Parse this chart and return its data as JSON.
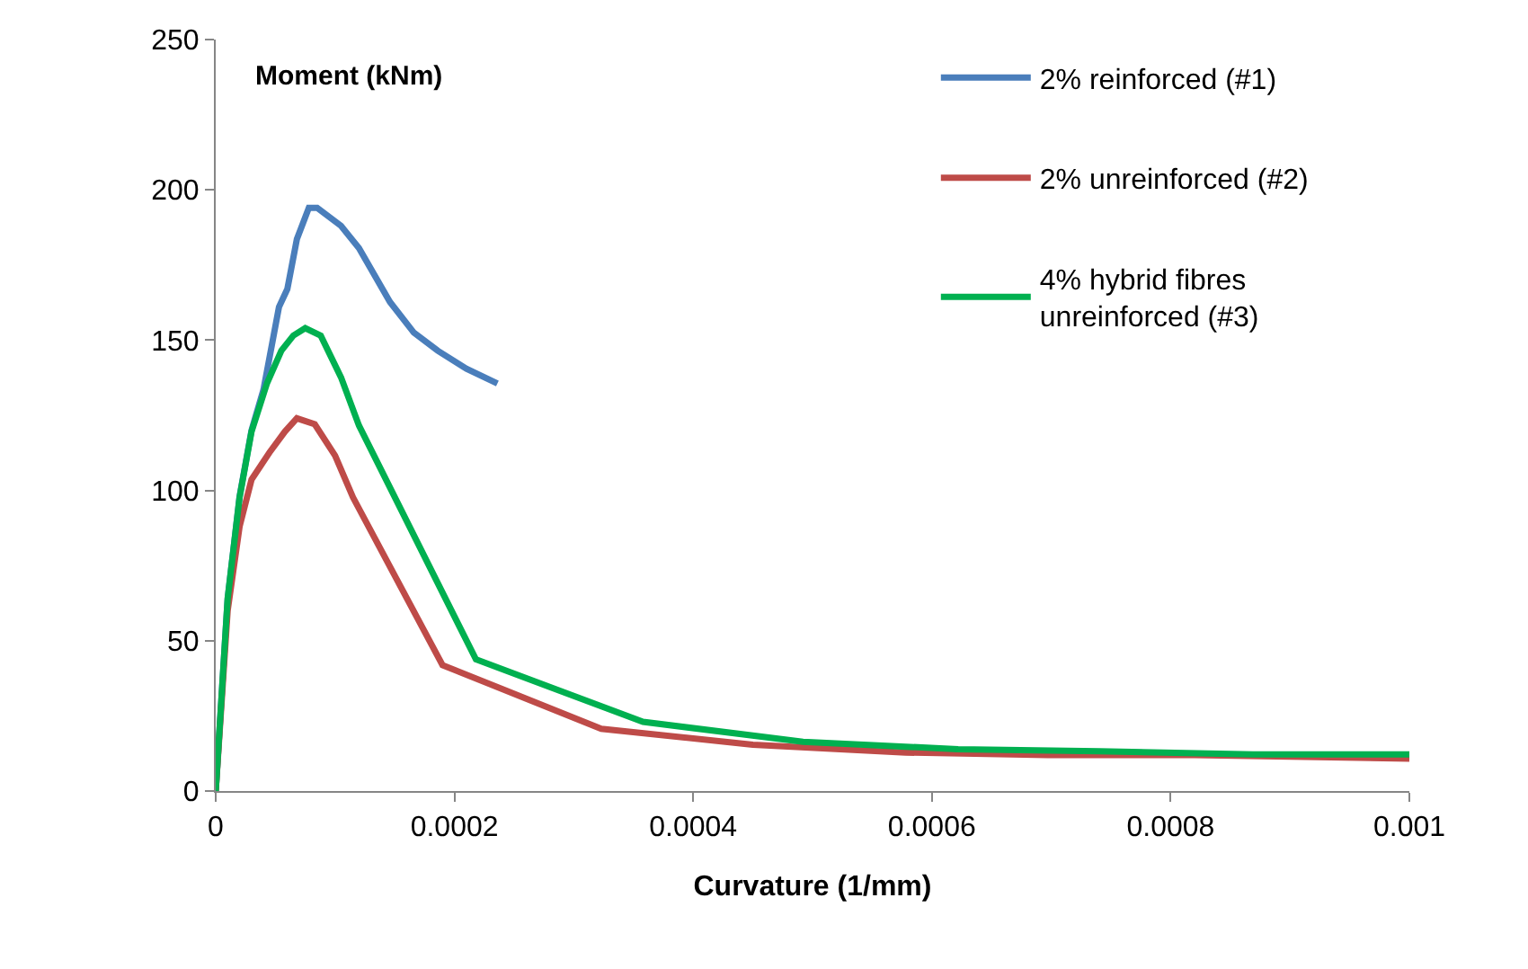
{
  "chart_data": {
    "type": "line",
    "xlabel": "Curvature (1/mm)",
    "ylabel": "Moment (kNm)",
    "xlim": [
      0,
      0.001
    ],
    "xticks": [
      0,
      0.0002,
      0.0004,
      0.0006,
      0.0008,
      0.001
    ],
    "ylim": [
      0,
      250
    ],
    "yticks": [
      0,
      50,
      100,
      150,
      200,
      250
    ],
    "legend": "top right",
    "marker": "none",
    "line_style": "solid",
    "series": [
      {
        "name": "2% reinforced (#1)",
        "color": "#4a7ebb",
        "x": [
          0,
          1e-05,
          2e-05,
          3e-05,
          4e-05,
          5.3e-05,
          6e-05,
          6.8e-05,
          7.8e-05,
          8.5e-05,
          0.000105,
          0.00012,
          0.000146,
          0.000166,
          0.000186,
          0.00021,
          0.000236
        ],
        "values": [
          0,
          64,
          98,
          120,
          133.5,
          161,
          167,
          183.6,
          194,
          194,
          188,
          180.6,
          162.7,
          152.5,
          146.5,
          140.5,
          135.6
        ]
      },
      {
        "name": "2% unreinforced (#2)",
        "color": "#be4b48",
        "x": [
          0,
          1e-05,
          2e-05,
          3e-05,
          4.5e-05,
          5.8e-05,
          6.8e-05,
          8.3e-05,
          0.0001,
          0.000115,
          0.00019,
          0.000323,
          0.00045,
          0.000578,
          0.000697,
          0.00082,
          0.001
        ],
        "values": [
          0,
          60,
          88,
          103.6,
          112.6,
          119.6,
          124,
          122,
          111.6,
          97.7,
          41.9,
          20.7,
          15.4,
          12.8,
          12,
          12,
          10.8
        ]
      },
      {
        "name": "4% hybrid fibres unreinforced (#3)",
        "color": "#00b050",
        "x": [
          0,
          1e-05,
          2e-05,
          3e-05,
          4.3e-05,
          5.5e-05,
          6.5e-05,
          7.5e-05,
          8.8e-05,
          0.000105,
          0.00012,
          0.000218,
          0.000358,
          0.000492,
          0.000622,
          0.00074,
          0.000869,
          0.001
        ],
        "values": [
          0,
          64,
          97.7,
          119.6,
          135.7,
          146.5,
          151.5,
          154,
          151.5,
          137.6,
          121.6,
          43.8,
          23,
          16.4,
          13.9,
          13.2,
          12.2,
          12.2
        ]
      }
    ]
  }
}
